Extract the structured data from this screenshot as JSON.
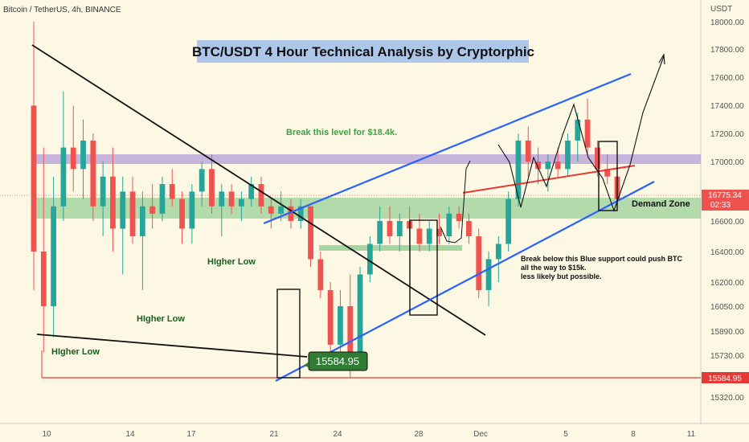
{
  "header": {
    "symbol_label": "Bitcoin / TetherUS, 4h, BINANCE"
  },
  "title": "BTC/USDT 4 Hour Technical Analysis by Cryptorphic",
  "price_axis": {
    "unit": "USDT",
    "ticks": [
      "18000.00",
      "17800.00",
      "17600.00",
      "17400.00",
      "17200.00",
      "17000.00",
      "16600.00",
      "16400.00",
      "16200.00",
      "16050.00",
      "15890.00",
      "15730.00",
      "15320.00"
    ]
  },
  "time_axis": {
    "ticks": [
      "10",
      "14",
      "17",
      "21",
      "24",
      "28",
      "Dec",
      "5",
      "8",
      "11"
    ]
  },
  "current_price": {
    "value": "16775.34",
    "countdown": "02:33"
  },
  "low_price_label": "15584.95",
  "callout_low": "15584.95",
  "annotations": {
    "higher_low_1": "HIgher Low",
    "higher_low_2": "HIgher Low",
    "higher_low_3": "HIgher Low",
    "break_level": "Break this level for $18.4k.",
    "demand_zone": "Demand Zone",
    "breakdown_1": "Break below this Blue support could push BTC",
    "breakdown_2": "all the way to $15k.",
    "breakdown_3": "less likely but possible."
  },
  "colors": {
    "bull": "#26a69a",
    "bear": "#ef5350",
    "purple_zone": "#b39ddb",
    "green_zone": "#81c784",
    "channel": "#2962ff",
    "low_line": "#e53935",
    "title_bg": "#aec6e8",
    "callout_bg": "#2e7d32"
  },
  "chart_data": {
    "type": "candlestick",
    "title": "BTC/USDT 4 Hour Technical Analysis by Cryptorphic",
    "x_ticks": [
      "10",
      "14",
      "17",
      "21",
      "24",
      "28",
      "Dec",
      "5",
      "8",
      "11"
    ],
    "y_ticks": [
      18000,
      17800,
      17600,
      17400,
      17200,
      17000,
      16600,
      16400,
      16200,
      16050,
      15890,
      15730,
      15320
    ],
    "ohlc_approx": [
      [
        17400,
        18000,
        16150,
        16400
      ],
      [
        16400,
        17100,
        15750,
        16050
      ],
      [
        16050,
        16900,
        15850,
        16700
      ],
      [
        16700,
        17500,
        16600,
        17100
      ],
      [
        17100,
        17400,
        16800,
        16950
      ],
      [
        16950,
        17300,
        16750,
        17150
      ],
      [
        17150,
        17200,
        16600,
        16700
      ],
      [
        16700,
        17000,
        16500,
        16900
      ],
      [
        16900,
        17100,
        16400,
        16550
      ],
      [
        16550,
        16900,
        16250,
        16800
      ],
      [
        16800,
        16900,
        16450,
        16500
      ],
      [
        16500,
        16800,
        16150,
        16700
      ],
      [
        16700,
        16850,
        16550,
        16650
      ],
      [
        16650,
        16900,
        16600,
        16850
      ],
      [
        16850,
        16950,
        16700,
        16750
      ],
      [
        16750,
        16800,
        16450,
        16550
      ],
      [
        16550,
        16850,
        16450,
        16800
      ],
      [
        16800,
        17000,
        16700,
        16950
      ],
      [
        16950,
        17050,
        16650,
        16700
      ],
      [
        16700,
        16850,
        16500,
        16800
      ],
      [
        16800,
        16850,
        16650,
        16700
      ],
      [
        16700,
        16800,
        16600,
        16750
      ],
      [
        16750,
        16900,
        16700,
        16850
      ],
      [
        16850,
        16900,
        16650,
        16700
      ],
      [
        16700,
        16750,
        16550,
        16650
      ],
      [
        16650,
        16800,
        16600,
        16700
      ],
      [
        16700,
        16750,
        16550,
        16600
      ],
      [
        16600,
        16750,
        16550,
        16700
      ],
      [
        16700,
        16700,
        16300,
        16350
      ],
      [
        16350,
        16400,
        16100,
        16150
      ],
      [
        16150,
        16200,
        15750,
        15800
      ],
      [
        15800,
        16150,
        15700,
        16050
      ],
      [
        16050,
        16250,
        15584,
        15700
      ],
      [
        15700,
        16300,
        15650,
        16250
      ],
      [
        16250,
        16500,
        16200,
        16450
      ],
      [
        16450,
        16700,
        16400,
        16600
      ],
      [
        16600,
        16700,
        16450,
        16500
      ],
      [
        16500,
        16650,
        16400,
        16600
      ],
      [
        16600,
        16700,
        16450,
        16550
      ],
      [
        16550,
        16650,
        16400,
        16450
      ],
      [
        16450,
        16600,
        16400,
        16550
      ],
      [
        16550,
        16650,
        16450,
        16500
      ],
      [
        16500,
        16700,
        16450,
        16650
      ],
      [
        16650,
        16700,
        16550,
        16600
      ],
      [
        16600,
        16650,
        16450,
        16500
      ],
      [
        16500,
        16550,
        16100,
        16150
      ],
      [
        16150,
        16400,
        16050,
        16350
      ],
      [
        16350,
        16500,
        16200,
        16450
      ],
      [
        16450,
        16800,
        16400,
        16750
      ],
      [
        16750,
        17200,
        16700,
        17150
      ],
      [
        17150,
        17250,
        16900,
        17000
      ],
      [
        17000,
        17100,
        16850,
        16950
      ],
      [
        16950,
        17050,
        16800,
        17000
      ],
      [
        17000,
        17100,
        16900,
        16950
      ],
      [
        16950,
        17200,
        16900,
        17150
      ],
      [
        17150,
        17350,
        17000,
        17300
      ],
      [
        17300,
        17450,
        17050,
        17100
      ],
      [
        17100,
        17150,
        16900,
        16950
      ],
      [
        16950,
        17050,
        16850,
        16900
      ],
      [
        16900,
        16950,
        16700,
        16750
      ]
    ],
    "levels": {
      "support_low": 15584.95,
      "current": 16775.34
    }
  }
}
